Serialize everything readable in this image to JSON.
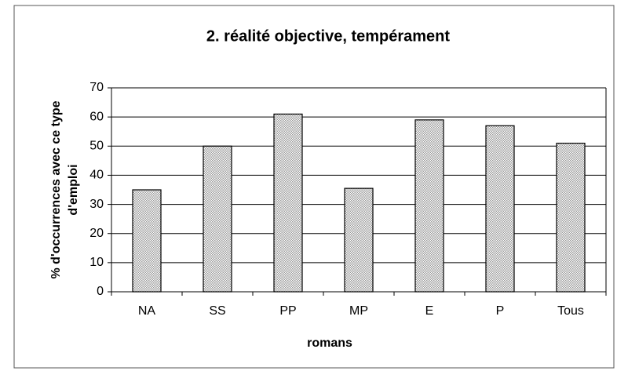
{
  "chart_data": {
    "type": "bar",
    "title": "2. réalité objective, tempérament",
    "xlabel": "romans",
    "ylabel": [
      "% d'occurrences avec ce type",
      "d'emploi"
    ],
    "categories": [
      "NA",
      "SS",
      "PP",
      "MP",
      "E",
      "P",
      "Tous"
    ],
    "values": [
      35,
      50,
      61,
      35.5,
      59,
      57,
      51
    ],
    "color": "#9a9a9a",
    "ylim": [
      0,
      70
    ],
    "yticks": [
      0,
      10,
      20,
      30,
      40,
      50,
      60,
      70
    ],
    "grid": true
  }
}
